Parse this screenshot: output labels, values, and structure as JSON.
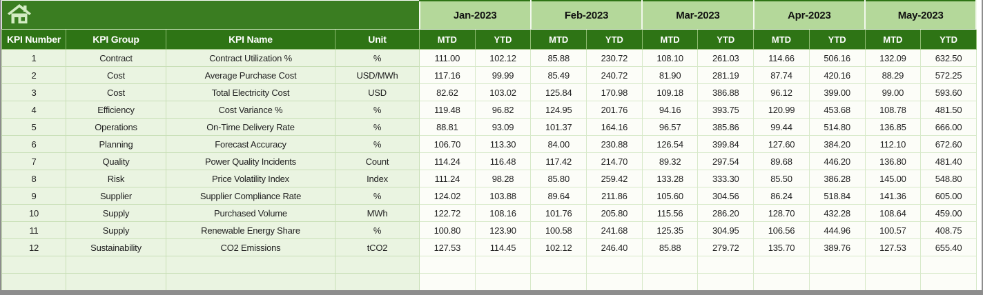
{
  "window": {
    "home_icon": "home",
    "frame_color": "#8d8d8d"
  },
  "colors": {
    "header_dark_green": "#2e7415",
    "top_band_green": "#3a7d21",
    "month_band_green": "#b4d89a",
    "label_cell_green": "#eaf4e1",
    "value_cell_white": "#fcfdf8",
    "header_text": "#ffffff",
    "body_text": "#212121"
  },
  "table": {
    "column_headers": [
      "KPI Number",
      "KPI Group",
      "KPI Name",
      "Unit"
    ],
    "months": [
      "Jan-2023",
      "Feb-2023",
      "Mar-2023",
      "Apr-2023",
      "May-2023"
    ],
    "period_subheaders": [
      "MTD",
      "YTD"
    ],
    "rows": [
      {
        "kpi_number": "1",
        "kpi_group": "Contract",
        "kpi_name": "Contract Utilization %",
        "unit": "%",
        "values": [
          "111.00",
          "102.12",
          "85.88",
          "230.72",
          "108.10",
          "261.03",
          "114.66",
          "506.16",
          "132.09",
          "632.50"
        ]
      },
      {
        "kpi_number": "2",
        "kpi_group": "Cost",
        "kpi_name": "Average Purchase Cost",
        "unit": "USD/MWh",
        "values": [
          "117.16",
          "99.99",
          "85.49",
          "240.72",
          "81.90",
          "281.19",
          "87.74",
          "420.16",
          "88.29",
          "572.25"
        ]
      },
      {
        "kpi_number": "3",
        "kpi_group": "Cost",
        "kpi_name": "Total Electricity Cost",
        "unit": "USD",
        "values": [
          "82.62",
          "103.02",
          "125.84",
          "170.98",
          "109.18",
          "386.88",
          "96.12",
          "399.00",
          "99.00",
          "593.60"
        ]
      },
      {
        "kpi_number": "4",
        "kpi_group": "Efficiency",
        "kpi_name": "Cost Variance %",
        "unit": "%",
        "values": [
          "119.48",
          "96.82",
          "124.95",
          "201.76",
          "94.16",
          "393.75",
          "120.99",
          "453.68",
          "108.78",
          "481.50"
        ]
      },
      {
        "kpi_number": "5",
        "kpi_group": "Operations",
        "kpi_name": "On-Time Delivery Rate",
        "unit": "%",
        "values": [
          "88.81",
          "93.09",
          "101.37",
          "164.16",
          "96.57",
          "385.86",
          "99.44",
          "514.80",
          "136.85",
          "666.00"
        ]
      },
      {
        "kpi_number": "6",
        "kpi_group": "Planning",
        "kpi_name": "Forecast Accuracy",
        "unit": "%",
        "values": [
          "106.70",
          "113.30",
          "84.00",
          "230.88",
          "126.54",
          "399.84",
          "127.60",
          "384.20",
          "112.10",
          "672.60"
        ]
      },
      {
        "kpi_number": "7",
        "kpi_group": "Quality",
        "kpi_name": "Power Quality Incidents",
        "unit": "Count",
        "values": [
          "114.24",
          "116.48",
          "117.42",
          "214.70",
          "89.32",
          "297.54",
          "89.68",
          "446.20",
          "136.80",
          "481.40"
        ]
      },
      {
        "kpi_number": "8",
        "kpi_group": "Risk",
        "kpi_name": "Price Volatility Index",
        "unit": "Index",
        "values": [
          "111.24",
          "98.28",
          "85.80",
          "259.42",
          "133.28",
          "333.30",
          "85.50",
          "386.28",
          "145.00",
          "548.80"
        ]
      },
      {
        "kpi_number": "9",
        "kpi_group": "Supplier",
        "kpi_name": "Supplier Compliance Rate",
        "unit": "%",
        "values": [
          "124.02",
          "103.88",
          "89.64",
          "211.86",
          "105.60",
          "304.56",
          "86.24",
          "518.84",
          "141.36",
          "605.00"
        ]
      },
      {
        "kpi_number": "10",
        "kpi_group": "Supply",
        "kpi_name": "Purchased Volume",
        "unit": "MWh",
        "values": [
          "122.72",
          "108.16",
          "101.76",
          "205.80",
          "115.56",
          "286.20",
          "128.70",
          "432.28",
          "108.64",
          "459.00"
        ]
      },
      {
        "kpi_number": "11",
        "kpi_group": "Supply",
        "kpi_name": "Renewable Energy Share",
        "unit": "%",
        "values": [
          "100.80",
          "123.90",
          "100.58",
          "241.68",
          "125.35",
          "304.95",
          "106.56",
          "444.96",
          "100.57",
          "408.75"
        ]
      },
      {
        "kpi_number": "12",
        "kpi_group": "Sustainability",
        "kpi_name": "CO2 Emissions",
        "unit": "tCO2",
        "values": [
          "127.53",
          "114.45",
          "102.12",
          "246.40",
          "85.88",
          "279.72",
          "135.70",
          "389.76",
          "127.53",
          "655.40"
        ]
      },
      {
        "kpi_number": "",
        "kpi_group": "",
        "kpi_name": "",
        "unit": "",
        "values": [
          "",
          "",
          "",
          "",
          "",
          "",
          "",
          "",
          "",
          ""
        ]
      },
      {
        "kpi_number": "",
        "kpi_group": "",
        "kpi_name": "",
        "unit": "",
        "values": [
          "",
          "",
          "",
          "",
          "",
          "",
          "",
          "",
          "",
          ""
        ]
      }
    ]
  }
}
